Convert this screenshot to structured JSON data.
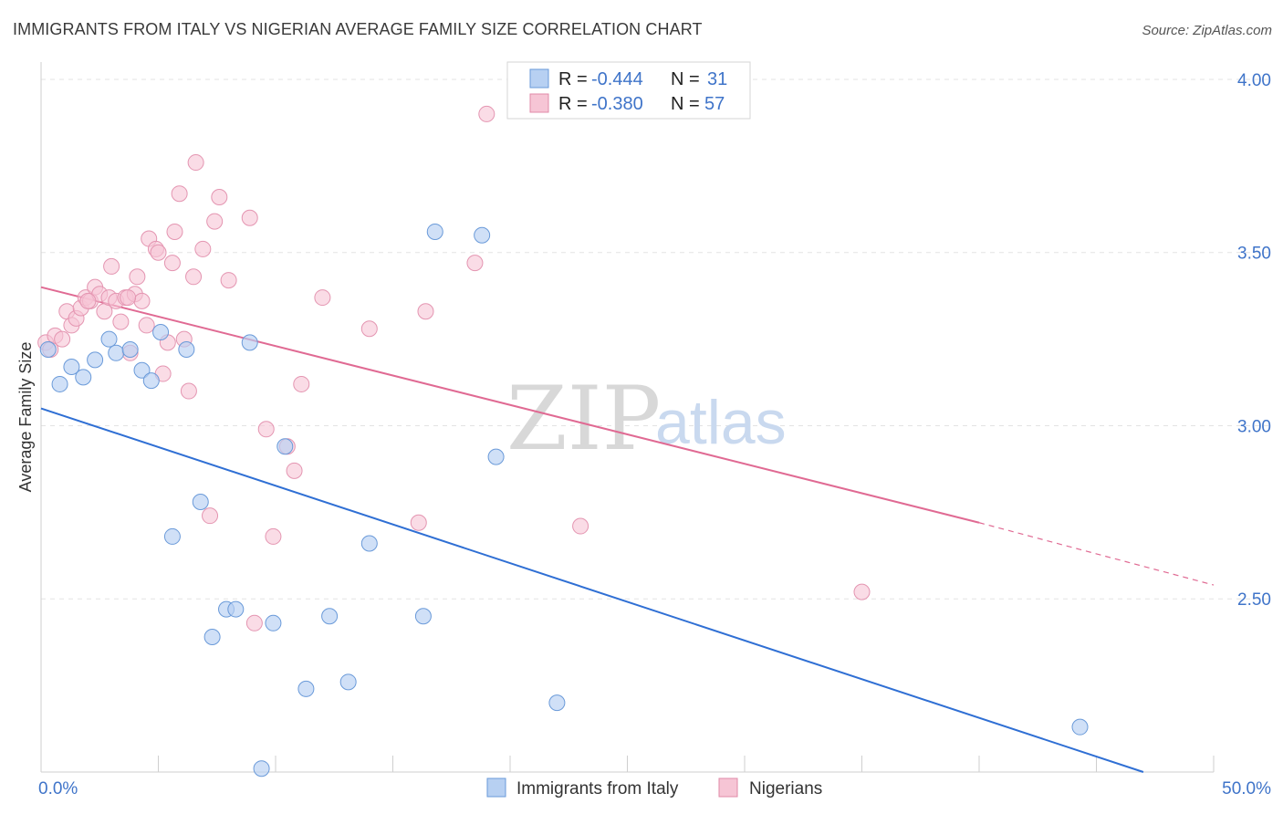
{
  "header": {
    "title": "IMMIGRANTS FROM ITALY VS NIGERIAN AVERAGE FAMILY SIZE CORRELATION CHART",
    "source": "Source: ZipAtlas.com"
  },
  "colors": {
    "blue": "#4a86d8",
    "blue_fill": "#b7d0f2",
    "pink": "#e06a93",
    "pink_fill": "#f6c5d5",
    "tick_text": "#3f74c9",
    "grid": "#e3e3e3"
  },
  "watermark": {
    "zip": "ZIP",
    "atlas": "atlas"
  },
  "legend": {
    "rows": [
      {
        "r_label": "R =",
        "r_value": "-0.444",
        "n_label": "N =",
        "n_value": "31"
      },
      {
        "r_label": "R =",
        "r_value": "-0.380",
        "n_label": "N =",
        "n_value": "57"
      }
    ]
  },
  "bottom_legend": {
    "series1": "Immigrants from Italy",
    "series2": "Nigerians"
  },
  "chart_data": {
    "type": "scatter",
    "title": "IMMIGRANTS FROM ITALY VS NIGERIAN AVERAGE FAMILY SIZE CORRELATION CHART",
    "xlabel": "",
    "ylabel": "Average Family Size",
    "xlim": [
      0,
      50
    ],
    "ylim": [
      2.0,
      4.05
    ],
    "x_tick_labels": {
      "min": "0.0%",
      "max": "50.0%"
    },
    "y_ticks": [
      {
        "value": 2.5,
        "label": "2.50"
      },
      {
        "value": 3.0,
        "label": "3.00"
      },
      {
        "value": 3.5,
        "label": "3.50"
      },
      {
        "value": 4.0,
        "label": "4.00"
      }
    ],
    "grid": true,
    "legend_position": "top-center",
    "series": [
      {
        "name": "Immigrants from Italy",
        "R": -0.444,
        "N": 31,
        "trend": {
          "x0": 0,
          "y0": 3.05,
          "x1": 47,
          "y1": 2.0
        },
        "points": [
          [
            0.3,
            3.22
          ],
          [
            0.8,
            3.12
          ],
          [
            1.3,
            3.17
          ],
          [
            1.8,
            3.14
          ],
          [
            2.3,
            3.19
          ],
          [
            2.9,
            3.25
          ],
          [
            3.2,
            3.21
          ],
          [
            3.8,
            3.22
          ],
          [
            4.3,
            3.16
          ],
          [
            4.7,
            3.13
          ],
          [
            5.1,
            3.27
          ],
          [
            5.6,
            2.68
          ],
          [
            6.2,
            3.22
          ],
          [
            6.8,
            2.78
          ],
          [
            7.3,
            2.39
          ],
          [
            7.9,
            2.47
          ],
          [
            8.3,
            2.47
          ],
          [
            8.9,
            3.24
          ],
          [
            9.4,
            2.01
          ],
          [
            9.9,
            2.43
          ],
          [
            10.4,
            2.94
          ],
          [
            11.3,
            2.24
          ],
          [
            12.3,
            2.45
          ],
          [
            13.1,
            2.26
          ],
          [
            14.0,
            2.66
          ],
          [
            16.3,
            2.45
          ],
          [
            16.8,
            3.56
          ],
          [
            18.8,
            3.55
          ],
          [
            19.4,
            2.91
          ],
          [
            22.0,
            2.2
          ],
          [
            44.3,
            2.13
          ]
        ]
      },
      {
        "name": "Nigerians",
        "R": -0.38,
        "N": 57,
        "trend": {
          "x0": 0,
          "y0": 3.4,
          "x1": 40,
          "y1": 2.72,
          "dash_to_x": 50,
          "dash_to_y": 2.54
        },
        "points": [
          [
            0.2,
            3.24
          ],
          [
            0.4,
            3.22
          ],
          [
            0.6,
            3.26
          ],
          [
            0.9,
            3.25
          ],
          [
            1.1,
            3.33
          ],
          [
            1.3,
            3.29
          ],
          [
            1.5,
            3.31
          ],
          [
            1.7,
            3.34
          ],
          [
            1.9,
            3.37
          ],
          [
            2.1,
            3.36
          ],
          [
            2.3,
            3.4
          ],
          [
            2.5,
            3.38
          ],
          [
            2.7,
            3.33
          ],
          [
            2.9,
            3.37
          ],
          [
            3.0,
            3.46
          ],
          [
            3.2,
            3.36
          ],
          [
            3.4,
            3.3
          ],
          [
            3.6,
            3.37
          ],
          [
            3.8,
            3.21
          ],
          [
            4.0,
            3.38
          ],
          [
            4.1,
            3.43
          ],
          [
            4.3,
            3.36
          ],
          [
            4.5,
            3.29
          ],
          [
            4.6,
            3.54
          ],
          [
            4.9,
            3.51
          ],
          [
            5.0,
            3.5
          ],
          [
            5.2,
            3.15
          ],
          [
            5.4,
            3.24
          ],
          [
            5.6,
            3.47
          ],
          [
            5.7,
            3.56
          ],
          [
            5.9,
            3.67
          ],
          [
            6.1,
            3.25
          ],
          [
            6.3,
            3.1
          ],
          [
            6.5,
            3.43
          ],
          [
            6.6,
            3.76
          ],
          [
            6.9,
            3.51
          ],
          [
            7.2,
            2.74
          ],
          [
            7.4,
            3.59
          ],
          [
            7.6,
            3.66
          ],
          [
            8.0,
            3.42
          ],
          [
            8.9,
            3.6
          ],
          [
            9.1,
            2.43
          ],
          [
            9.6,
            2.99
          ],
          [
            9.9,
            2.68
          ],
          [
            10.5,
            2.94
          ],
          [
            10.8,
            2.87
          ],
          [
            11.1,
            3.12
          ],
          [
            12.0,
            3.37
          ],
          [
            14.0,
            3.28
          ],
          [
            16.1,
            2.72
          ],
          [
            16.4,
            3.33
          ],
          [
            18.5,
            3.47
          ],
          [
            19.0,
            3.9
          ],
          [
            23.0,
            2.71
          ],
          [
            35.0,
            2.52
          ],
          [
            2.0,
            3.36
          ],
          [
            3.7,
            3.37
          ]
        ]
      }
    ]
  }
}
